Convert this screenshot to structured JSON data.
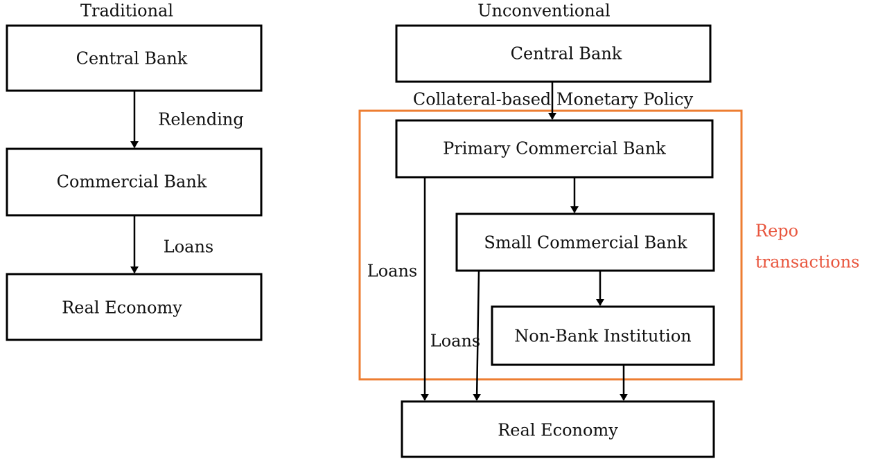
{
  "traditional": {
    "title": "Traditional",
    "nodes": [
      {
        "label": "Central Bank"
      },
      {
        "label": "Commercial Bank"
      },
      {
        "label": "Real Economy"
      }
    ],
    "edges": [
      {
        "label": "Relending"
      },
      {
        "label": "Loans"
      }
    ]
  },
  "unconventional": {
    "title": "Unconventional",
    "nodes": [
      {
        "label": "Central Bank"
      },
      {
        "label": "Primary Commercial Bank"
      },
      {
        "label": "Small Commercial Bank"
      },
      {
        "label": "Non-Bank Institution"
      },
      {
        "label": "Real Economy"
      }
    ],
    "edges": [
      {
        "label": "Collateral-based Monetary Policy"
      },
      {
        "label": "Loans"
      },
      {
        "label": "Loans"
      }
    ],
    "group_label": [
      "Repo",
      "transactions"
    ]
  }
}
